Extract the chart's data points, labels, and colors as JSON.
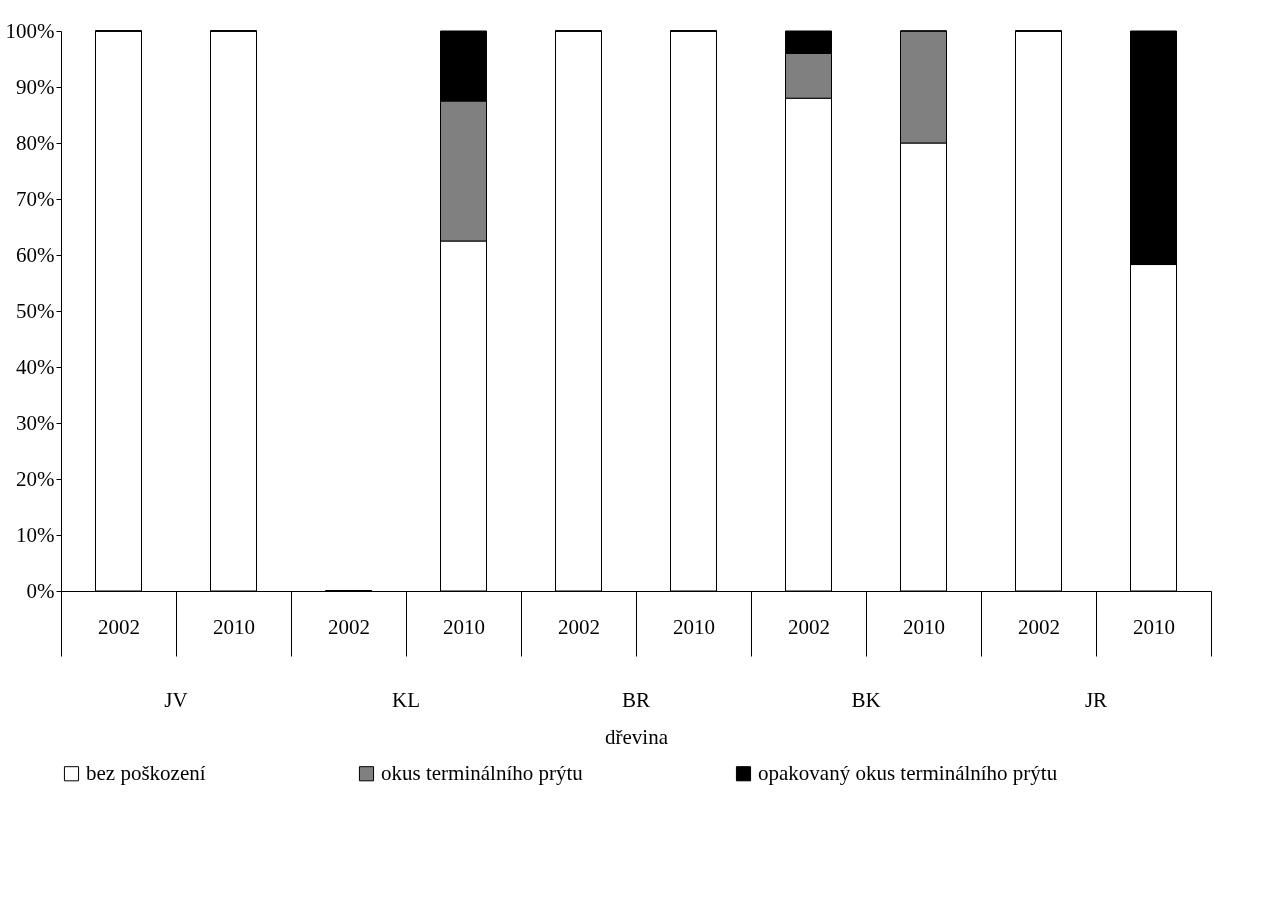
{
  "chart_data": {
    "type": "bar",
    "stacked": true,
    "xlabel": "dřevina",
    "categories": [
      "2002",
      "2010",
      "2002",
      "2010",
      "2002",
      "2010",
      "2002",
      "2010",
      "2002",
      "2010"
    ],
    "annotations": [
      "JV",
      "KL",
      "BR",
      "BK",
      "JR"
    ],
    "series": [
      {
        "name": "bez poškození",
        "color": "#ffffff",
        "values": [
          100,
          100,
          0,
          62.5,
          100,
          100,
          88,
          80,
          100,
          58.3
        ]
      },
      {
        "name": "okus terminálního prýtu",
        "color": "#808080",
        "values": [
          0,
          0,
          0,
          25,
          0,
          0,
          8,
          20,
          0,
          0
        ]
      },
      {
        "name": "opakovaný okus terminálního prýtu",
        "color": "#000000",
        "values": [
          0,
          0,
          0,
          12.5,
          0,
          0,
          4,
          0,
          0,
          41.7
        ]
      }
    ],
    "ylim": [
      0,
      100
    ],
    "yticks": [
      {
        "value": 0,
        "label": "0%"
      },
      {
        "value": 10,
        "label": "10%"
      },
      {
        "value": 20,
        "label": "20%"
      },
      {
        "value": 30,
        "label": "30%"
      },
      {
        "value": 40,
        "label": "40%"
      },
      {
        "value": 50,
        "label": "50%"
      },
      {
        "value": 60,
        "label": "60%"
      },
      {
        "value": 70,
        "label": "70%"
      },
      {
        "value": 80,
        "label": "80%"
      },
      {
        "value": 90,
        "label": "90%"
      },
      {
        "value": 100,
        "label": "100%"
      }
    ],
    "grid": false,
    "legend": "bottom"
  }
}
